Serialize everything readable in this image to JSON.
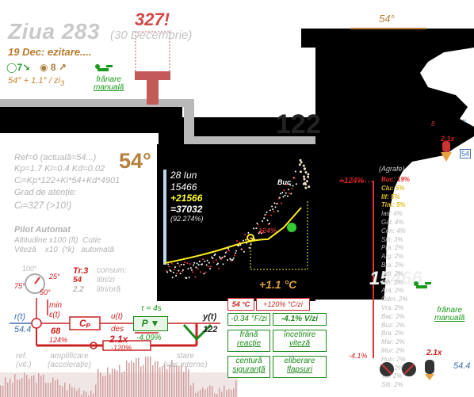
{
  "header": {
    "day_title": "Ziua 283",
    "day_date": "(30 Decembrie)",
    "subtitle": "19 Dec: ezitare....",
    "alert_value": "327!",
    "counter_a": "7",
    "counter_b": "8",
    "rate": "54° + 1.1° / zi",
    "rate_sub": "3",
    "brake_label_1": "frânare",
    "brake_label_2": "manuală"
  },
  "plot": {
    "date": "28 Iun",
    "value1": "15466",
    "value2": "+21566",
    "value3": "=37032",
    "value4": "(92.274%)",
    "big_number": "122",
    "mid_percent": "124%",
    "buc_label": "Buc",
    "temp_delta": "+1.1 °C"
  },
  "regulator": {
    "ref": "Ref=0 (actuală=54...)",
    "gains": "Kp=1.7 Ki=0.4 Kd=0.02",
    "formula": "Cᵢ=Kp*122+Ki*54+Kd*4901",
    "attention": "Grad de atenție:",
    "attention_value": "Cᵢ=327 (>10!)",
    "big_temp": "54°"
  },
  "autopilot": {
    "title": "Pilot Automat",
    "row1_a": "Altitudine x100 (ft)",
    "row1_b": "Cutie",
    "row2_a": "Viteză",
    "row2_b": "x10",
    "row2_c": "(*k)",
    "row2_d": "automată",
    "gauge_top": "100°",
    "gauge_left": "75°",
    "gauge_right": "25°",
    "gauge_bottom": "50°",
    "tr": "Tr.3",
    "consum": "consum:",
    "consum_v1": "54",
    "consum_u1": "litri/zi",
    "consum_v2": "2.2",
    "consum_u2": "litri/oră",
    "min": "min",
    "eps": "ε(t)",
    "r_label": "r(t)",
    "r_value": "54.4",
    "cp": "Cₚ",
    "u_label": "u(t)",
    "des": "des",
    "eps_val": "68",
    "eps_pct": "124%",
    "tau": "τ = 4s",
    "p_label": "P",
    "p_pct": "-4.09%",
    "y_label": "y(t)",
    "y_value": "122",
    "mult": "2.1x",
    "mult_pct": "-120%",
    "ref_vit": "ref.",
    "ref_vit2": "(vit.)",
    "amp1": "amplificare",
    "amp2": "(accelerație)",
    "state1": "stare",
    "state2": "(vac.interne)"
  },
  "controls": {
    "temp_box": "54 °C",
    "pct_box": "+120% °C/zi",
    "rate1": "-0.34 °F/zi",
    "rate2": "-4.1% V/zi",
    "btn_brake": [
      "frână",
      "reacție"
    ],
    "btn_slow": [
      "încetinire",
      "viteză"
    ],
    "btn_belt": [
      "centură",
      "siguranță"
    ],
    "btn_release": [
      "eliberare",
      "flapsuri"
    ]
  },
  "right_panel": {
    "top_temp": "54°",
    "pct_left": "+124%",
    "pct_bottom": "-4.1%",
    "big_number": "15466",
    "brake_label_1": "frânare",
    "brake_label_2": "manuală",
    "mult_top": "2.1x",
    "val_top": "54",
    "v_label": "v",
    "val_8": "8",
    "mult_bottom": "2.1x",
    "val_bottom": "54.4",
    "list_header": "(Agrafe)",
    "list": [
      {
        "name": "Buc:",
        "val": "19%",
        "hl": "red"
      },
      {
        "name": "Clu:",
        "val": "5%",
        "hl": "yellow"
      },
      {
        "name": "Ilf:",
        "val": "5%",
        "hl": "yellow"
      },
      {
        "name": "Tim:",
        "val": "5%",
        "hl": "yellow"
      },
      {
        "name": "Ias:",
        "val": "4%",
        "hl": ""
      },
      {
        "name": "Gal:",
        "val": "4%",
        "hl": ""
      },
      {
        "name": "Con:",
        "val": "4%",
        "hl": ""
      },
      {
        "name": "Sib:",
        "val": "3%",
        "hl": ""
      },
      {
        "name": "Pra:",
        "val": "2%",
        "hl": ""
      },
      {
        "name": "Arg:",
        "val": "2%",
        "hl": ""
      },
      {
        "name": "Bra:",
        "val": "2%",
        "hl": ""
      },
      {
        "name": "Dol:",
        "val": "2%",
        "hl": ""
      },
      {
        "name": "Bih:",
        "val": "2%",
        "hl": ""
      },
      {
        "name": "Ară:",
        "val": "2%",
        "hl": ""
      },
      {
        "name": "Odm:",
        "val": "2%",
        "hl": ""
      },
      {
        "name": "Vra:",
        "val": "2%",
        "hl": ""
      },
      {
        "name": "Bac:",
        "val": "2%",
        "hl": ""
      },
      {
        "name": "Buz:",
        "val": "2%",
        "hl": ""
      },
      {
        "name": "Bra:",
        "val": "2%",
        "hl": ""
      },
      {
        "name": "Mar:",
        "val": "2%",
        "hl": ""
      },
      {
        "name": "Mur:",
        "val": "2%",
        "hl": ""
      },
      {
        "name": "Hun:",
        "val": "2%",
        "hl": ""
      },
      {
        "name": "Sat:",
        "val": "2%",
        "hl": ""
      },
      {
        "name": "Tel:",
        "val": "2%",
        "hl": ""
      },
      {
        "name": "Sib:",
        "val": "2%",
        "hl": ""
      }
    ]
  }
}
